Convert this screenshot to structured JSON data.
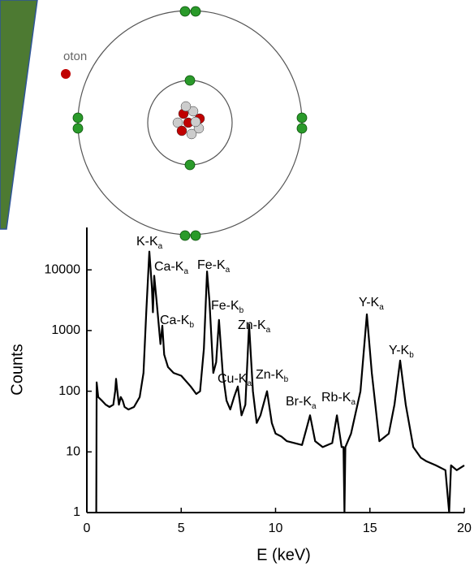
{
  "diagram": {
    "label": "oton"
  },
  "chart_data": {
    "type": "line",
    "color": "#000000",
    "log_y": true,
    "x_label": "E (keV)",
    "y_label": "Counts",
    "xlim": [
      0,
      20
    ],
    "xticks": [
      0,
      5,
      10,
      15,
      20
    ],
    "ylim": [
      1,
      50000
    ],
    "yticks": [
      1,
      10,
      100,
      1000,
      10000
    ],
    "x": [
      0.5,
      0.52,
      0.6,
      0.8,
      1.0,
      1.2,
      1.4,
      1.5,
      1.55,
      1.6,
      1.7,
      1.8,
      1.9,
      2.0,
      2.2,
      2.5,
      2.8,
      3.0,
      3.15,
      3.31,
      3.45,
      3.5,
      3.57,
      3.7,
      3.9,
      4.0,
      4.1,
      4.3,
      4.6,
      5.0,
      5.5,
      5.8,
      6.0,
      6.2,
      6.37,
      6.5,
      6.7,
      6.85,
      7.0,
      7.2,
      7.4,
      7.6,
      7.8,
      8.0,
      8.2,
      8.4,
      8.6,
      8.8,
      9.0,
      9.2,
      9.55,
      9.8,
      10.0,
      10.3,
      10.6,
      11.0,
      11.4,
      11.65,
      11.83,
      12.1,
      12.5,
      13.0,
      13.25,
      13.5,
      13.6,
      13.65,
      13.7,
      14.0,
      14.5,
      14.84,
      15.1,
      15.5,
      16.0,
      16.3,
      16.6,
      16.9,
      17.3,
      17.7,
      18.0,
      18.5,
      19.0,
      19.2,
      19.3,
      19.6,
      20.0
    ],
    "values": [
      1,
      140,
      80,
      70,
      60,
      55,
      60,
      100,
      160,
      110,
      60,
      80,
      70,
      55,
      50,
      55,
      80,
      200,
      2000,
      20000,
      5000,
      2000,
      8000,
      3000,
      600,
      1200,
      400,
      250,
      200,
      180,
      120,
      90,
      100,
      500,
      9400,
      3000,
      200,
      300,
      1500,
      200,
      70,
      50,
      80,
      120,
      40,
      60,
      1260,
      100,
      30,
      40,
      100,
      30,
      20,
      18,
      15,
      14,
      13,
      25,
      40,
      15,
      12,
      14,
      40,
      12,
      12,
      1,
      12,
      20,
      100,
      1850,
      200,
      15,
      20,
      60,
      320,
      60,
      12,
      8,
      7,
      6,
      5,
      1,
      6,
      5,
      6
    ],
    "annotations": [
      {
        "text": "K-K",
        "sub": "a"
      },
      {
        "text": "Ca-K",
        "sub": "a"
      },
      {
        "text": "Fe-K",
        "sub": "a"
      },
      {
        "text": "Ca-K",
        "sub": "b"
      },
      {
        "text": "Fe-K",
        "sub": "b"
      },
      {
        "text": "Zn-K",
        "sub": "a"
      },
      {
        "text": "Cu-K",
        "sub": "a"
      },
      {
        "text": "Zn-K",
        "sub": "b"
      },
      {
        "text": "Br-K",
        "sub": "a"
      },
      {
        "text": "Rb-K",
        "sub": "a"
      },
      {
        "text": "Y-K",
        "sub": "a"
      },
      {
        "text": "Y-K",
        "sub": "b"
      }
    ]
  }
}
